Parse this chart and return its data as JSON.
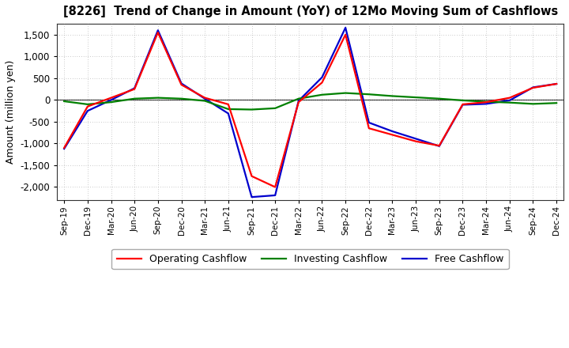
{
  "title": "[8226]  Trend of Change in Amount (YoY) of 12Mo Moving Sum of Cashflows",
  "ylabel": "Amount (million yen)",
  "background_color": "#ffffff",
  "plot_bg_color": "#ffffff",
  "grid_color": "#999999",
  "x_labels": [
    "Sep-19",
    "Dec-19",
    "Mar-20",
    "Jun-20",
    "Sep-20",
    "Dec-20",
    "Mar-21",
    "Jun-21",
    "Sep-21",
    "Dec-21",
    "Mar-22",
    "Jun-22",
    "Sep-22",
    "Dec-22",
    "Mar-23",
    "Jun-23",
    "Sep-23",
    "Dec-23",
    "Mar-24",
    "Jun-24",
    "Sep-24",
    "Dec-24"
  ],
  "operating": [
    -1100,
    -150,
    50,
    250,
    1550,
    350,
    50,
    -100,
    -1750,
    -2000,
    -50,
    400,
    1500,
    -650,
    -800,
    -950,
    -1050,
    -100,
    -50,
    50,
    280,
    370
  ],
  "investing": [
    -30,
    -100,
    -50,
    30,
    50,
    30,
    -20,
    -210,
    -220,
    -190,
    30,
    120,
    160,
    130,
    90,
    60,
    30,
    -10,
    -40,
    -60,
    -90,
    -70
  ],
  "free": [
    -1120,
    -250,
    0,
    270,
    1600,
    380,
    30,
    -310,
    -2230,
    -2190,
    -20,
    520,
    1660,
    -520,
    -720,
    -890,
    -1060,
    -110,
    -90,
    -10,
    290,
    370
  ],
  "operating_color": "#ff0000",
  "investing_color": "#008000",
  "free_color": "#0000cd",
  "ylim": [
    -2300,
    1750
  ],
  "yticks": [
    -2000,
    -1500,
    -1000,
    -500,
    0,
    500,
    1000,
    1500
  ],
  "legend_labels": [
    "Operating Cashflow",
    "Investing Cashflow",
    "Free Cashflow"
  ],
  "linewidth": 1.6
}
